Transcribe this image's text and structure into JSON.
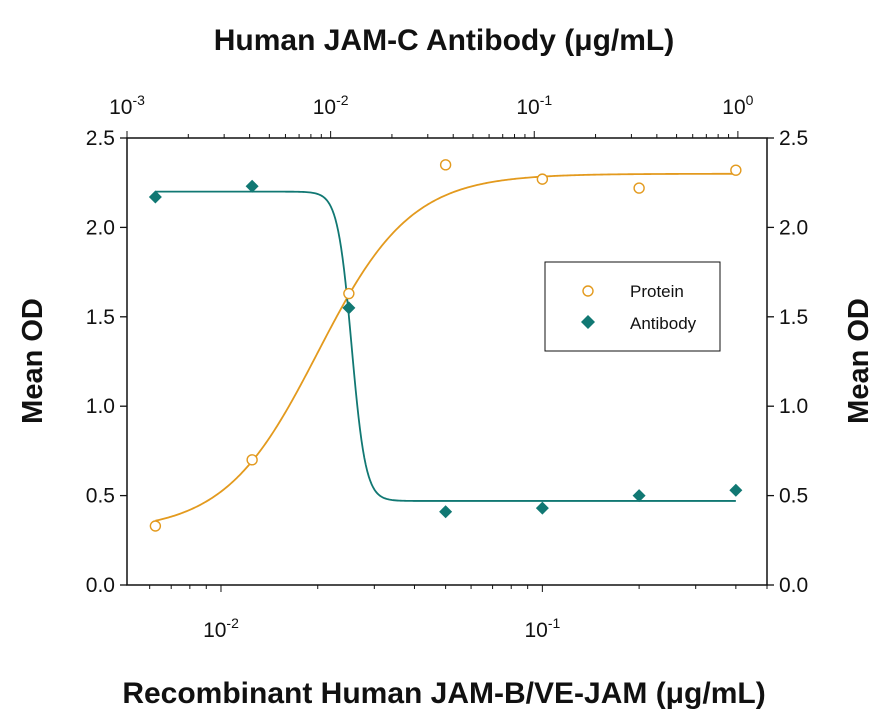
{
  "chart_data": {
    "type": "scatter",
    "title_top": "Human JAM-C Antibody (μg/mL)",
    "xlabel": "Recombinant Human JAM-B/VE-JAM (μg/mL)",
    "ylabel_left": "Mean OD",
    "ylabel_right": "Mean OD",
    "x_scale": "log",
    "xlim": [
      0.0051,
      0.5
    ],
    "x_top_lim": [
      0.001,
      1.39
    ],
    "ylim": [
      0,
      2.5
    ],
    "y_ticks": [
      "0.0",
      "0.5",
      "1.0",
      "1.5",
      "2.0",
      "2.5"
    ],
    "x_bottom_ticks": [
      {
        "base": "10",
        "exp": "-2",
        "value": 0.01
      },
      {
        "base": "10",
        "exp": "-1",
        "value": 0.1
      }
    ],
    "x_top_ticks": [
      {
        "base": "10",
        "exp": "-3",
        "value": 0.001
      },
      {
        "base": "10",
        "exp": "-2",
        "value": 0.01
      },
      {
        "base": "10",
        "exp": "-1",
        "value": 0.1
      },
      {
        "base": "10",
        "exp": "0",
        "value": 1
      }
    ],
    "legend_placement": "center-right",
    "series": [
      {
        "name": "Protein",
        "axis": "bottom",
        "marker": "open-circle",
        "color": "#E39A1E",
        "x": [
          0.00625,
          0.0125,
          0.025,
          0.05,
          0.1,
          0.2,
          0.4
        ],
        "y": [
          0.33,
          0.7,
          1.63,
          2.35,
          2.27,
          2.22,
          2.32
        ],
        "fit": {
          "bottom": 0.3,
          "top": 2.3,
          "ec50": 0.02,
          "hill": 3,
          "direction": "increasing"
        }
      },
      {
        "name": "Antibody",
        "axis": "bottom",
        "marker": "filled-diamond",
        "color": "#117873",
        "x": [
          0.00625,
          0.0125,
          0.025,
          0.05,
          0.1,
          0.2,
          0.4
        ],
        "y": [
          2.17,
          2.23,
          1.55,
          0.41,
          0.43,
          0.5,
          0.53
        ],
        "fit": {
          "bottom": 0.47,
          "top": 2.2,
          "ec50": 0.0255,
          "hill": 20,
          "direction": "decreasing"
        }
      }
    ]
  }
}
